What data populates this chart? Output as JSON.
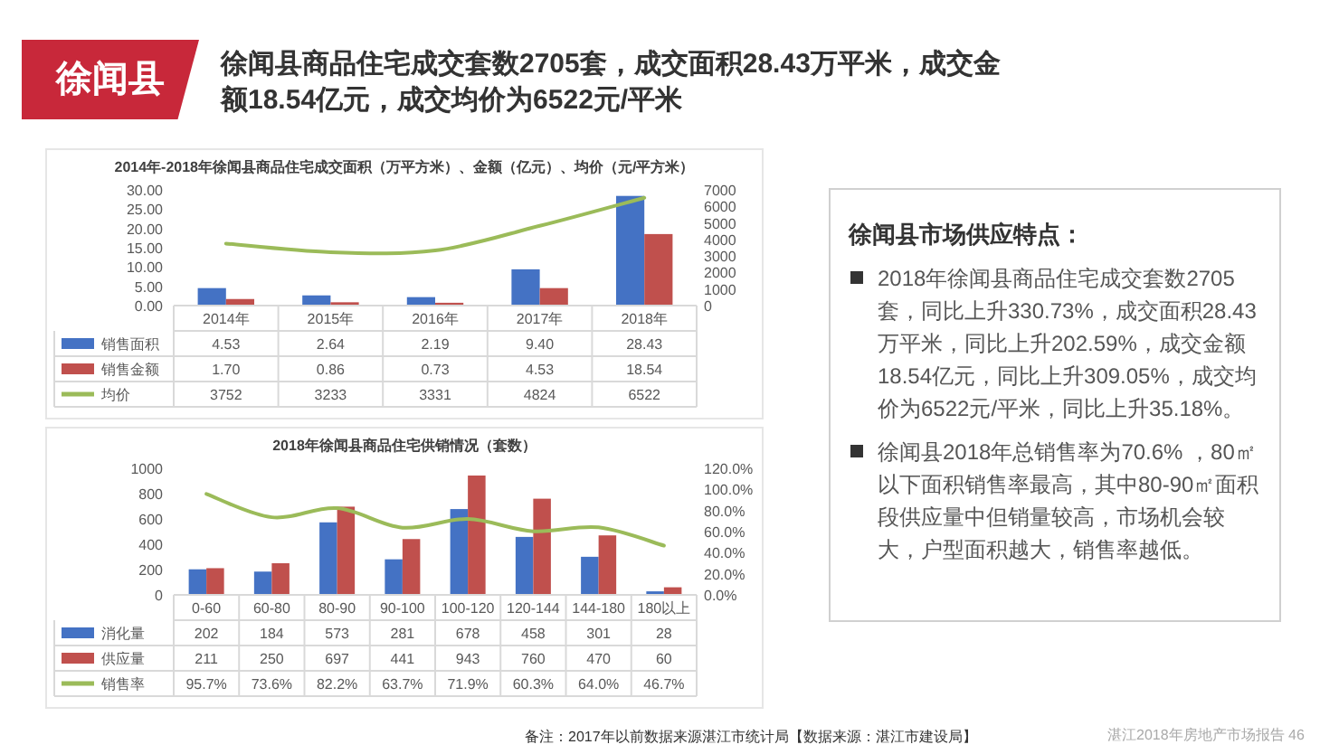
{
  "chart_data": [
    {
      "type": "bar",
      "title": "2014年-2018年徐闻县商品住宅成交面积（万平方米）、金额（亿元）、均价（元/平方米）",
      "categories": [
        "2014年",
        "2015年",
        "2016年",
        "2017年",
        "2018年"
      ],
      "series": [
        {
          "name": "销售面积",
          "color": "#4472c4",
          "values": [
            4.53,
            2.64,
            2.19,
            9.4,
            28.43
          ],
          "value_labels": [
            "4.53",
            "2.64",
            "2.19",
            "9.40",
            "28.43"
          ]
        },
        {
          "name": "销售金额",
          "color": "#c0504d",
          "values": [
            1.7,
            0.86,
            0.73,
            4.53,
            18.54
          ],
          "value_labels": [
            "1.70",
            "0.86",
            "0.73",
            "4.53",
            "18.54"
          ]
        },
        {
          "name": "均价",
          "type": "line",
          "axis": "y2",
          "color": "#9bbb59",
          "values": [
            3752,
            3233,
            3331,
            4824,
            6522
          ],
          "value_labels": [
            "3752",
            "3233",
            "3331",
            "4824",
            "6522"
          ]
        }
      ],
      "ylim": [
        0,
        30
      ],
      "yticks": [
        {
          "value": 0,
          "label": "0.00"
        },
        {
          "value": 5,
          "label": "5.00"
        },
        {
          "value": 10,
          "label": "10.00"
        },
        {
          "value": 15,
          "label": "15.00"
        },
        {
          "value": 20,
          "label": "20.00"
        },
        {
          "value": 25,
          "label": "25.00"
        },
        {
          "value": 30,
          "label": "30.00"
        }
      ],
      "y2lim": [
        0,
        7000
      ],
      "y2ticks": [
        0,
        1000,
        2000,
        3000,
        4000,
        5000,
        6000,
        7000
      ],
      "legend": "bottom left"
    },
    {
      "type": "bar",
      "title": "2018年徐闻县商品住宅供销情况（套数）",
      "categories": [
        "0-60",
        "60-80",
        "80-90",
        "90-100",
        "100-120",
        "120-144",
        "144-180",
        "180以上"
      ],
      "series": [
        {
          "name": "消化量",
          "color": "#4472c4",
          "values": [
            202,
            184,
            573,
            281,
            678,
            458,
            301,
            28
          ],
          "value_labels": [
            "202",
            "184",
            "573",
            "281",
            "678",
            "458",
            "301",
            "28"
          ]
        },
        {
          "name": "供应量",
          "color": "#c0504d",
          "values": [
            211,
            250,
            697,
            441,
            943,
            760,
            470,
            60
          ],
          "value_labels": [
            "211",
            "250",
            "697",
            "441",
            "943",
            "760",
            "470",
            "60"
          ]
        },
        {
          "name": "销售率",
          "type": "line",
          "axis": "y2",
          "color": "#9bbb59",
          "values": [
            95.7,
            73.6,
            82.2,
            63.7,
            71.9,
            60.3,
            64.0,
            46.7
          ],
          "value_labels": [
            "95.7%",
            "73.6%",
            "82.2%",
            "63.7%",
            "71.9%",
            "60.3%",
            "64.0%",
            "46.7%"
          ]
        }
      ],
      "ylim": [
        0,
        1000
      ],
      "yticks": [
        0,
        200,
        400,
        600,
        800,
        1000
      ],
      "y2lim": [
        0,
        120
      ],
      "y2ticks": [
        {
          "value": 0,
          "label": "0.0%"
        },
        {
          "value": 20,
          "label": "20.0%"
        },
        {
          "value": 40,
          "label": "40.0%"
        },
        {
          "value": 60,
          "label": "60.0%"
        },
        {
          "value": 80,
          "label": "80.0%"
        },
        {
          "value": 100,
          "label": "100.0%"
        },
        {
          "value": 120,
          "label": "120.0%"
        }
      ],
      "legend": "bottom left"
    },
    {
      "type": "other",
      "title": "徐闻县",
      "subtitle": "徐闻县商品住宅成交套数2705套，成交面积28.43万平米，成交金额18.54亿元，成交均价为6522元/平米",
      "annotations": [
        "徐闻县市场供应特点：",
        "2018年徐闻县商品住宅成交套数2705套，同比上升330.73%，成交面积28.43万平米，同比上升202.59%，成交金额18.54亿元，同比上升309.05%，成交均价为6522元/平米，同比上升35.18%。",
        "徐闻县2018年总销售率为70.6% ，80㎡以下面积销售率最高，其中80-90㎡面积段供应量中但销量较高，市场机会较大，户型面积越大，销售率越低。",
        "备注：2017年以前数据来源湛江市统计局【数据来源：湛江市建设局】",
        "湛江2018年房地产市场报告 46"
      ]
    }
  ]
}
